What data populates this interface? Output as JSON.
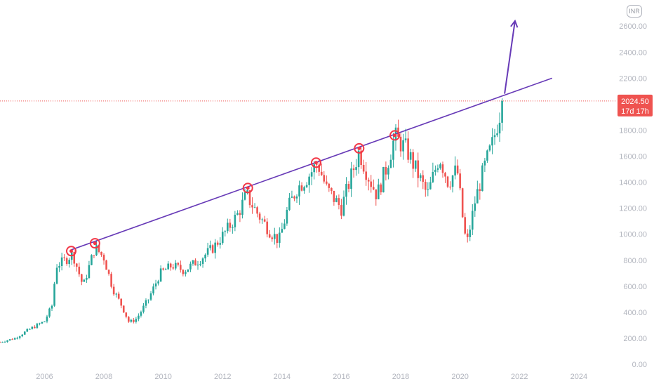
{
  "currency": "INR",
  "colors": {
    "up": "#26a69a",
    "down": "#ef5350",
    "trendline": "#673ab7",
    "marker": "#f23645",
    "price_line": "#ef5350",
    "axis_text": "#b2b5be"
  },
  "price_label": {
    "value": "2024.50",
    "countdown": "17d 17h"
  },
  "chart_data": {
    "type": "candlestick",
    "timeframe": "monthly",
    "x_ticks": [
      "2006",
      "2008",
      "2010",
      "2012",
      "2014",
      "2016",
      "2018",
      "2020",
      "2022",
      "2024"
    ],
    "y_ticks": [
      "0.00",
      "200.00",
      "400.00",
      "600.00",
      "800.00",
      "1000.00",
      "1200.00",
      "1400.00",
      "1600.00",
      "1800.00",
      "2000.00",
      "2200.00",
      "2400.00",
      "2600.00"
    ],
    "xlim": [
      2004.5,
      2026.0
    ],
    "ylim": [
      0,
      2700
    ],
    "last_price": 2024.5,
    "close_path": [
      [
        2004.5,
        170
      ],
      [
        2005.0,
        200
      ],
      [
        2005.5,
        270
      ],
      [
        2006.0,
        330
      ],
      [
        2006.25,
        450
      ],
      [
        2006.4,
        760
      ],
      [
        2006.7,
        800
      ],
      [
        2006.95,
        850
      ],
      [
        2007.3,
        600
      ],
      [
        2007.7,
        900
      ],
      [
        2008.0,
        820
      ],
      [
        2008.3,
        580
      ],
      [
        2008.6,
        450
      ],
      [
        2008.85,
        320
      ],
      [
        2009.1,
        350
      ],
      [
        2009.5,
        500
      ],
      [
        2009.9,
        700
      ],
      [
        2010.3,
        760
      ],
      [
        2010.7,
        720
      ],
      [
        2011.2,
        800
      ],
      [
        2011.7,
        900
      ],
      [
        2012.2,
        1050
      ],
      [
        2012.5,
        1150
      ],
      [
        2012.8,
        1300
      ],
      [
        2013.2,
        1150
      ],
      [
        2013.6,
        1020
      ],
      [
        2013.9,
        950
      ],
      [
        2014.2,
        1200
      ],
      [
        2014.5,
        1350
      ],
      [
        2014.9,
        1450
      ],
      [
        2015.2,
        1550
      ],
      [
        2015.5,
        1350
      ],
      [
        2016.0,
        1200
      ],
      [
        2016.2,
        1350
      ],
      [
        2016.6,
        1640
      ],
      [
        2016.9,
        1450
      ],
      [
        2017.2,
        1300
      ],
      [
        2017.5,
        1500
      ],
      [
        2017.8,
        1750
      ],
      [
        2018.2,
        1650
      ],
      [
        2018.6,
        1450
      ],
      [
        2018.9,
        1300
      ],
      [
        2019.3,
        1600
      ],
      [
        2019.6,
        1400
      ],
      [
        2019.9,
        1500
      ],
      [
        2020.15,
        1000
      ],
      [
        2020.25,
        950
      ],
      [
        2020.5,
        1250
      ],
      [
        2020.8,
        1500
      ],
      [
        2020.95,
        1600
      ],
      [
        2021.1,
        1700
      ],
      [
        2021.3,
        1900
      ],
      [
        2021.45,
        2024
      ]
    ],
    "trendline": {
      "start": {
        "date": "2006.9",
        "price": 880
      },
      "end": {
        "date": "2023.1",
        "price": 2200
      }
    },
    "markers": [
      {
        "date": "2006.9",
        "price": 870
      },
      {
        "date": "2007.7",
        "price": 930
      },
      {
        "date": "2012.85",
        "price": 1355
      },
      {
        "date": "2015.15",
        "price": 1550
      },
      {
        "date": "2016.6",
        "price": 1660
      },
      {
        "date": "2017.8",
        "price": 1760
      }
    ],
    "arrow": {
      "start": {
        "date": "2021.5",
        "price": 2080
      },
      "end": {
        "date": "2021.85",
        "price": 2640
      }
    }
  }
}
